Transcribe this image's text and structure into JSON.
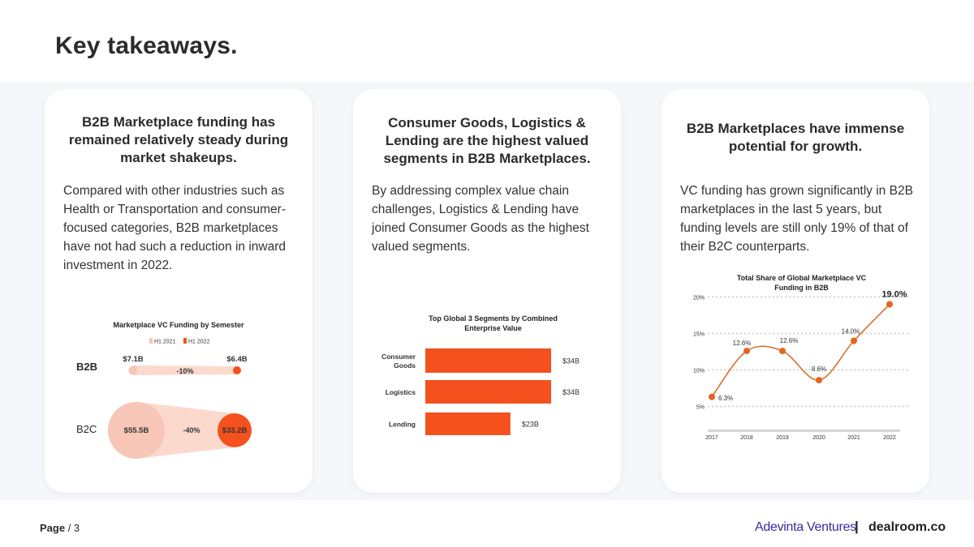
{
  "page": {
    "title": "Key takeaways.",
    "page_label": "Page",
    "page_number": "/ 3",
    "brand_left": "Adevinta Ventures",
    "brand_separator": "|",
    "brand_right": "dealroom.co"
  },
  "cards": [
    {
      "heading": "B2B Marketplace funding has remained relatively steady during market shakeups.",
      "body": "Compared with other industries such as Health or Transportation and consumer-focused categories, B2B marketplaces have not had such a reduction in inward investment in 2022."
    },
    {
      "heading": "Consumer Goods, Logistics & Lending are the highest valued segments in B2B Marketplaces.",
      "body": "By addressing complex value chain challenges, Logistics & Lending have joined Consumer Goods as the highest valued segments."
    },
    {
      "heading": "B2B Marketplaces have immense potential for growth.",
      "body": "VC funding has grown significantly in B2B marketplaces in the last 5 years, but funding levels are still only 19% of that of their B2C counterparts."
    }
  ],
  "chart_data": [
    {
      "type": "bar",
      "title": "Marketplace VC Funding by Semester",
      "legend": [
        "H1 2021",
        "H1 2022"
      ],
      "categories": [
        "B2B",
        "B2C"
      ],
      "series": [
        {
          "name": "H1 2021",
          "values": [
            7.1,
            55.5
          ],
          "labels": [
            "$7.1B",
            "$55.5B"
          ]
        },
        {
          "name": "H1 2022",
          "values": [
            6.4,
            33.2
          ],
          "labels": [
            "$6.4B",
            "$33.2B"
          ]
        }
      ],
      "change_labels": [
        "-10%",
        "-40%"
      ],
      "colors": {
        "h1_2021": "#f7c6b6",
        "h1_2022": "#f4511e"
      }
    },
    {
      "type": "bar",
      "title": "Top Global 3 Segments by Combined Enterprise Value",
      "categories": [
        "Consumer Goods",
        "Logistics",
        "Lending"
      ],
      "values": [
        34,
        34,
        23
      ],
      "value_labels": [
        "$34B",
        "$34B",
        "$23B"
      ],
      "xlim": [
        0,
        40
      ],
      "color": "#f4511e"
    },
    {
      "type": "line",
      "title": "Total Share of Global Marketplace VC Funding in B2B",
      "x": [
        "2017",
        "2018",
        "2019",
        "2020",
        "2021",
        "2022"
      ],
      "values": [
        6.3,
        12.6,
        12.6,
        8.6,
        14.0,
        19.0
      ],
      "value_labels": [
        "6.3%",
        "12.6%",
        "12.6%",
        "8.6%",
        "14.0%",
        "19.0%"
      ],
      "yticks": [
        "5%",
        "10%",
        "15%",
        "20%"
      ],
      "ylim": [
        3,
        21
      ],
      "grid": true,
      "color": "#d9702a"
    }
  ]
}
